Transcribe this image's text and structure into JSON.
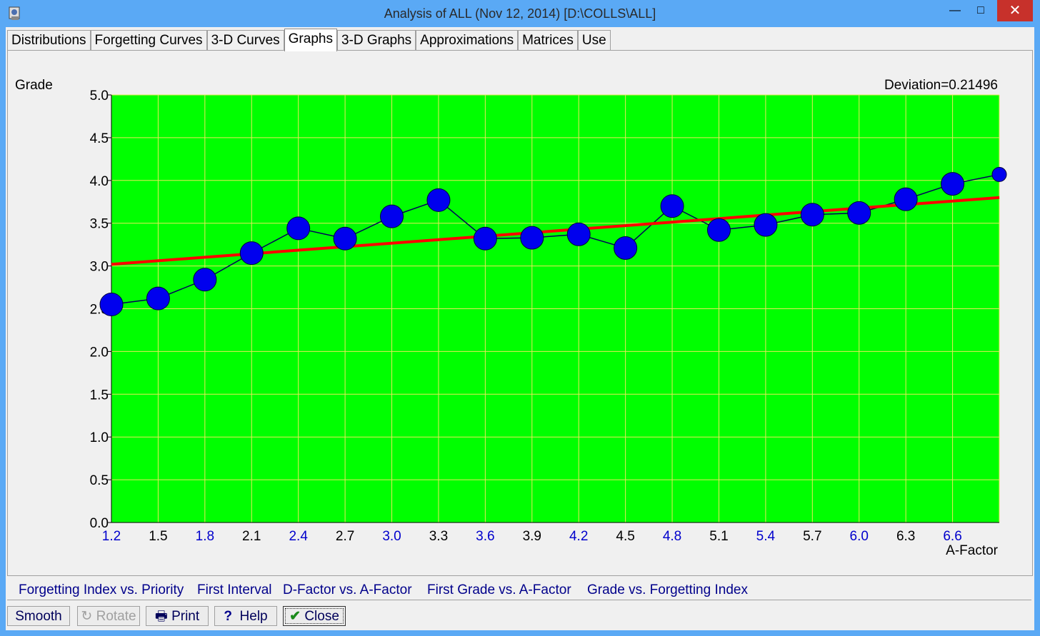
{
  "window": {
    "title": "Analysis of ALL (Nov 12, 2014) [D:\\COLLS\\ALL]",
    "controls": {
      "minimize": "—",
      "maximize": "□",
      "close": "✕"
    }
  },
  "tabs": [
    {
      "label": "Distributions",
      "accel": "D",
      "active": false
    },
    {
      "label": "Forgetting Curves",
      "accel": "F",
      "active": false
    },
    {
      "label": "3-D Curves",
      "accel": "C",
      "active": false
    },
    {
      "label": "Graphs",
      "accel": "G",
      "active": true
    },
    {
      "label": "3-D Graphs",
      "accel": "3",
      "active": false
    },
    {
      "label": "Approximations",
      "accel": "A",
      "active": false
    },
    {
      "label": "Matrices",
      "accel": "M",
      "active": false
    },
    {
      "label": "Use",
      "accel": "U",
      "active": false
    }
  ],
  "chart_header": {
    "y_axis_title": "Grade",
    "deviation": "Deviation=0.21496"
  },
  "chart_data": {
    "type": "line",
    "title": "",
    "xlabel": "A-Factor",
    "ylabel": "Grade",
    "xlim": [
      1.2,
      6.9
    ],
    "ylim": [
      0.0,
      5.0
    ],
    "grid": true,
    "colors": {
      "background": "#00ff00",
      "grid": "#e8e85a",
      "points": "#0000ee",
      "line": "#00005a",
      "regression": "#ff0000"
    },
    "x_ticks": [
      "1.2",
      "1.5",
      "1.8",
      "2.1",
      "2.4",
      "2.7",
      "3.0",
      "3.3",
      "3.6",
      "3.9",
      "4.2",
      "4.5",
      "4.8",
      "5.1",
      "5.4",
      "5.7",
      "6.0",
      "6.3",
      "6.6"
    ],
    "y_ticks": [
      "0.0",
      "0.5",
      "1.0",
      "1.5",
      "2.0",
      "2.5",
      "3.0",
      "3.5",
      "4.0",
      "4.5",
      "5.0"
    ],
    "series": [
      {
        "x": [
          1.2,
          1.5,
          1.8,
          2.1,
          2.4,
          2.7,
          3.0,
          3.3,
          3.6,
          3.9,
          4.2,
          4.5,
          4.8,
          5.1,
          5.4,
          5.7,
          6.0,
          6.3,
          6.6,
          6.9
        ],
        "y": [
          2.55,
          2.62,
          2.84,
          3.15,
          3.44,
          3.32,
          3.58,
          3.77,
          3.32,
          3.33,
          3.37,
          3.21,
          3.7,
          3.42,
          3.48,
          3.6,
          3.62,
          3.78,
          3.96,
          4.07
        ],
        "marker_weight": [
          3,
          3,
          3,
          3,
          3,
          3,
          3,
          3,
          3,
          3,
          3,
          3,
          3,
          3,
          3,
          3,
          3,
          3,
          3,
          1
        ]
      }
    ],
    "regression": {
      "x": [
        1.2,
        6.9
      ],
      "y": [
        3.02,
        3.8
      ]
    }
  },
  "bottom_tabs": [
    {
      "label": "Forgetting Index vs. Priority",
      "active": false
    },
    {
      "label": "First Interval",
      "active": false
    },
    {
      "label": "D-Factor vs. A-Factor",
      "active": false
    },
    {
      "label": "First Grade vs. A-Factor",
      "active": true
    },
    {
      "label": "Grade vs. Forgetting Index",
      "active": false
    }
  ],
  "buttons": {
    "smooth": "Smooth",
    "rotate": "Rotate",
    "print": "Print",
    "help": "Help",
    "close": "Close"
  },
  "icons": [
    "app-icon",
    "rotate-icon",
    "printer-icon",
    "help-icon",
    "checkmark-icon"
  ]
}
